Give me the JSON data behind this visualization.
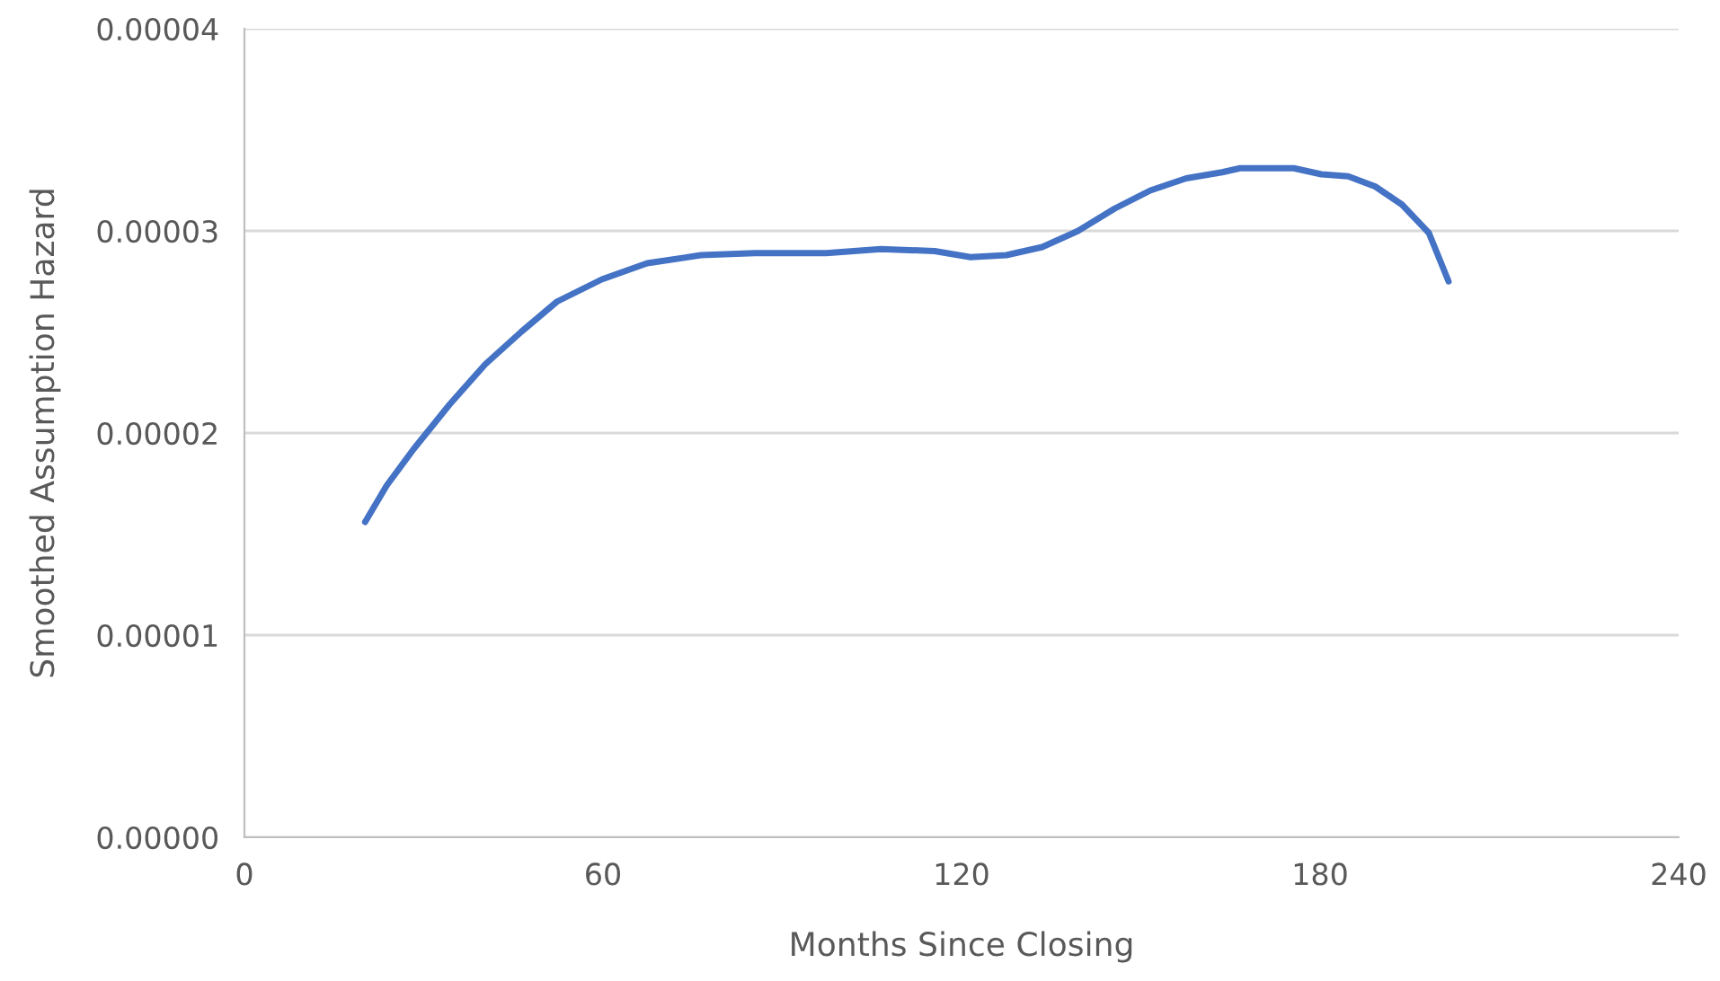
{
  "chart_data": {
    "type": "line",
    "xlabel": "Months Since Closing",
    "ylabel": "Smoothed Assumption Hazard",
    "x": [
      20.2,
      23.8,
      28.3,
      34.3,
      40.3,
      46.3,
      52.3,
      59.8,
      67.4,
      76.4,
      85.4,
      97.4,
      106.5,
      115.5,
      121.5,
      127.5,
      133.5,
      139.5,
      145.6,
      151.6,
      157.6,
      163.6,
      166.6,
      175.6,
      180.2,
      184.7,
      189.2,
      193.7,
      198.2,
      201.5
    ],
    "series": [
      {
        "color": "#4472c4",
        "values": [
          1.56e-05,
          1.74e-05,
          1.92e-05,
          2.14e-05,
          2.34e-05,
          2.5e-05,
          2.65e-05,
          2.76e-05,
          2.84e-05,
          2.88e-05,
          2.89e-05,
          2.89e-05,
          2.91e-05,
          2.9e-05,
          2.87e-05,
          2.88e-05,
          2.92e-05,
          3e-05,
          3.11e-05,
          3.2e-05,
          3.26e-05,
          3.29e-05,
          3.31e-05,
          3.31e-05,
          3.28e-05,
          3.27e-05,
          3.22e-05,
          3.13e-05,
          2.99e-05,
          2.75e-05
        ]
      }
    ],
    "xlim": [
      0,
      240
    ],
    "xticks": [
      0,
      60,
      120,
      180,
      240
    ],
    "ylim": [
      0,
      4e-05
    ],
    "yticks": [
      {
        "value": 0,
        "label": "0.00000"
      },
      {
        "value": 1e-05,
        "label": "0.00001"
      },
      {
        "value": 2e-05,
        "label": "0.00002"
      },
      {
        "value": 3e-05,
        "label": "0.00003"
      },
      {
        "value": 4e-05,
        "label": "0.00004"
      }
    ],
    "grid": "y",
    "marker": "none",
    "line_style": "solid",
    "legend": false
  }
}
